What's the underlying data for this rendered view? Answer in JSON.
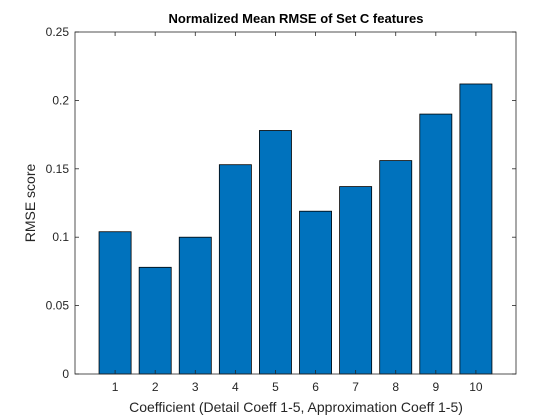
{
  "chart_data": {
    "type": "bar",
    "title": "Normalized Mean RMSE of Set C features",
    "xlabel": "Coefficient (Detail Coeff 1-5, Approximation Coeff 1-5)",
    "ylabel": "RMSE score",
    "categories": [
      "1",
      "2",
      "3",
      "4",
      "5",
      "6",
      "7",
      "8",
      "9",
      "10"
    ],
    "values": [
      0.104,
      0.078,
      0.1,
      0.153,
      0.178,
      0.119,
      0.137,
      0.156,
      0.19,
      0.212
    ],
    "ylim": [
      0,
      0.25
    ],
    "yticks": [
      "0",
      "0.05",
      "0.1",
      "0.15",
      "0.2",
      "0.25"
    ],
    "ytick_values": [
      0,
      0.05,
      0.1,
      0.15,
      0.2,
      0.25
    ],
    "bar_color": "#0072BD",
    "grid": false,
    "legend": "none"
  }
}
